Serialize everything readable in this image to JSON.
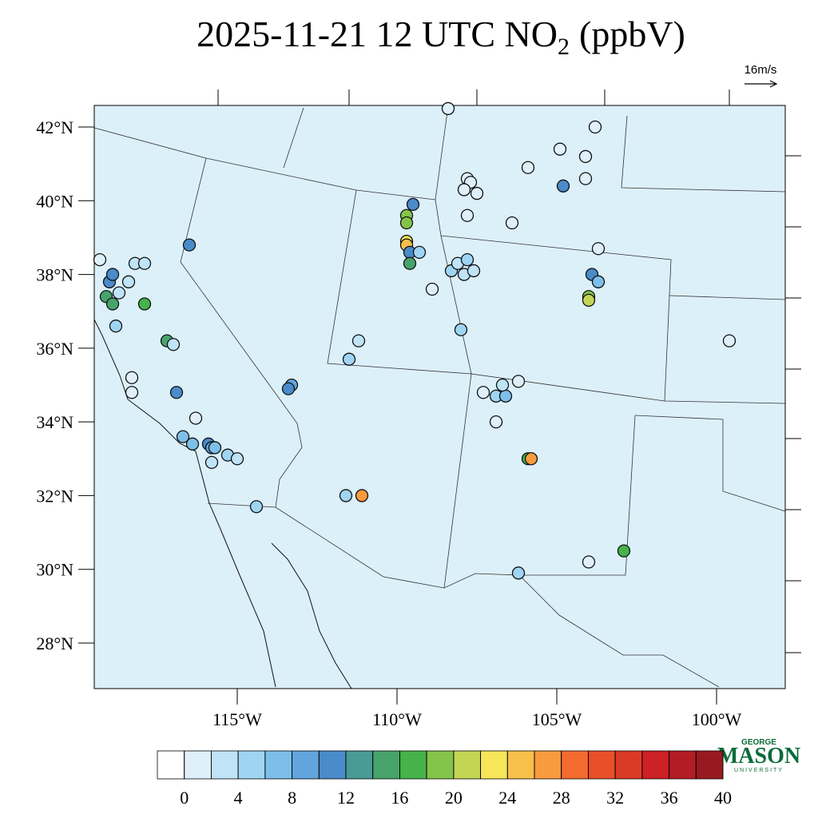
{
  "map": {
    "title": {
      "main": "2025-11-21 12 UTC NO",
      "subscript": "2",
      "unit": "(ppbV)"
    },
    "wind_reference": "16m/s",
    "lat_ticks": [
      {
        "value": 42,
        "label": "42°N"
      },
      {
        "value": 40,
        "label": "40°N"
      },
      {
        "value": 38,
        "label": "38°N"
      },
      {
        "value": 36,
        "label": "36°N"
      },
      {
        "value": 34,
        "label": "34°N"
      },
      {
        "value": 32,
        "label": "32°N"
      },
      {
        "value": 30,
        "label": "30°N"
      },
      {
        "value": 28,
        "label": "28°N"
      }
    ],
    "lon_ticks": [
      {
        "value": -115,
        "label": "115°W"
      },
      {
        "value": -110,
        "label": "110°W"
      },
      {
        "value": -105,
        "label": "105°W"
      },
      {
        "value": -100,
        "label": "100°W"
      }
    ],
    "colorbar": {
      "levels": [
        0,
        2,
        4,
        6,
        8,
        10,
        12,
        14,
        16,
        18,
        20,
        22,
        24,
        26,
        28,
        30,
        32,
        34,
        36,
        38,
        40
      ],
      "ticks": [
        0,
        4,
        8,
        12,
        16,
        20,
        24,
        28,
        32,
        36,
        40
      ],
      "colors": [
        "#ffffff",
        "#dff0fa",
        "#bfe4f8",
        "#9fd5f3",
        "#7dbfe9",
        "#62a5dd",
        "#4a8bca",
        "#4a9a96",
        "#46a46b",
        "#45b24a",
        "#85c44b",
        "#c3d554",
        "#f7e659",
        "#f8c04a",
        "#f89a3e",
        "#f36b2e",
        "#e8502a",
        "#db3a26",
        "#cd2027",
        "#b31c25",
        "#981a20"
      ]
    },
    "stations": [
      {
        "lon": -119.3,
        "lat": 38.4,
        "value": 1
      },
      {
        "lon": -119.0,
        "lat": 37.8,
        "value": 11
      },
      {
        "lon": -118.9,
        "lat": 38.0,
        "value": 10
      },
      {
        "lon": -118.7,
        "lat": 37.5,
        "value": 2
      },
      {
        "lon": -119.1,
        "lat": 37.4,
        "value": 15
      },
      {
        "lon": -118.9,
        "lat": 37.2,
        "value": 15
      },
      {
        "lon": -118.4,
        "lat": 37.8,
        "value": 2
      },
      {
        "lon": -118.2,
        "lat": 38.3,
        "value": 3
      },
      {
        "lon": -117.9,
        "lat": 38.3,
        "value": 2
      },
      {
        "lon": -118.8,
        "lat": 36.6,
        "value": 4
      },
      {
        "lon": -117.9,
        "lat": 37.2,
        "value": 16
      },
      {
        "lon": -117.2,
        "lat": 36.2,
        "value": 15
      },
      {
        "lon": -117.0,
        "lat": 36.1,
        "value": 3
      },
      {
        "lon": -116.9,
        "lat": 34.8,
        "value": 10
      },
      {
        "lon": -118.3,
        "lat": 35.2,
        "value": 1
      },
      {
        "lon": -118.3,
        "lat": 34.8,
        "value": 1
      },
      {
        "lon": -116.5,
        "lat": 38.8,
        "value": 11
      },
      {
        "lon": -116.3,
        "lat": 34.1,
        "value": 1
      },
      {
        "lon": -116.7,
        "lat": 33.6,
        "value": 6
      },
      {
        "lon": -116.4,
        "lat": 33.4,
        "value": 7
      },
      {
        "lon": -115.9,
        "lat": 33.4,
        "value": 10
      },
      {
        "lon": -115.8,
        "lat": 33.3,
        "value": 9
      },
      {
        "lon": -115.7,
        "lat": 33.3,
        "value": 6
      },
      {
        "lon": -115.8,
        "lat": 32.9,
        "value": 2
      },
      {
        "lon": -115.3,
        "lat": 33.1,
        "value": 4
      },
      {
        "lon": -115.0,
        "lat": 33.0,
        "value": 3
      },
      {
        "lon": -114.4,
        "lat": 31.7,
        "value": 5
      },
      {
        "lon": -113.3,
        "lat": 35.0,
        "value": 9
      },
      {
        "lon": -113.4,
        "lat": 34.9,
        "value": 11
      },
      {
        "lon": -111.5,
        "lat": 35.7,
        "value": 5
      },
      {
        "lon": -111.2,
        "lat": 36.2,
        "value": 3
      },
      {
        "lon": -111.6,
        "lat": 32.0,
        "value": 5
      },
      {
        "lon": -111.1,
        "lat": 32.0,
        "value": 27
      },
      {
        "lon": -109.5,
        "lat": 39.9,
        "value": 11
      },
      {
        "lon": -109.7,
        "lat": 39.6,
        "value": 18
      },
      {
        "lon": -109.7,
        "lat": 39.4,
        "value": 19
      },
      {
        "lon": -109.7,
        "lat": 38.9,
        "value": 23
      },
      {
        "lon": -109.7,
        "lat": 38.8,
        "value": 24
      },
      {
        "lon": -109.6,
        "lat": 38.6,
        "value": 11
      },
      {
        "lon": -109.6,
        "lat": 38.3,
        "value": 15
      },
      {
        "lon": -109.3,
        "lat": 38.6,
        "value": 4
      },
      {
        "lon": -108.9,
        "lat": 37.6,
        "value": 1
      },
      {
        "lon": -108.3,
        "lat": 38.1,
        "value": 4
      },
      {
        "lon": -108.1,
        "lat": 38.3,
        "value": 3
      },
      {
        "lon": -107.8,
        "lat": 38.4,
        "value": 4
      },
      {
        "lon": -107.9,
        "lat": 38.0,
        "value": 3
      },
      {
        "lon": -107.6,
        "lat": 38.1,
        "value": 2
      },
      {
        "lon": -108.0,
        "lat": 36.5,
        "value": 4
      },
      {
        "lon": -108.4,
        "lat": 42.5,
        "value": 1
      },
      {
        "lon": -107.8,
        "lat": 40.6,
        "value": 1
      },
      {
        "lon": -107.7,
        "lat": 40.5,
        "value": 1
      },
      {
        "lon": -107.9,
        "lat": 40.3,
        "value": 1
      },
      {
        "lon": -107.5,
        "lat": 40.2,
        "value": 1
      },
      {
        "lon": -107.8,
        "lat": 39.6,
        "value": 1
      },
      {
        "lon": -106.4,
        "lat": 39.4,
        "value": 1
      },
      {
        "lon": -105.9,
        "lat": 40.9,
        "value": 1
      },
      {
        "lon": -104.9,
        "lat": 41.4,
        "value": 1
      },
      {
        "lon": -103.8,
        "lat": 42.0,
        "value": 1
      },
      {
        "lon": -104.1,
        "lat": 41.2,
        "value": 1
      },
      {
        "lon": -104.8,
        "lat": 40.4,
        "value": 11
      },
      {
        "lon": -104.1,
        "lat": 40.6,
        "value": 1
      },
      {
        "lon": -103.7,
        "lat": 38.7,
        "value": 1
      },
      {
        "lon": -103.9,
        "lat": 38.0,
        "value": 10
      },
      {
        "lon": -103.7,
        "lat": 37.8,
        "value": 7
      },
      {
        "lon": -104.0,
        "lat": 37.4,
        "value": 19
      },
      {
        "lon": -104.0,
        "lat": 37.3,
        "value": 20
      },
      {
        "lon": -107.3,
        "lat": 34.8,
        "value": 1
      },
      {
        "lon": -106.9,
        "lat": 34.7,
        "value": 5
      },
      {
        "lon": -106.6,
        "lat": 34.7,
        "value": 6
      },
      {
        "lon": -106.7,
        "lat": 35.0,
        "value": 2
      },
      {
        "lon": -106.2,
        "lat": 35.1,
        "value": 1
      },
      {
        "lon": -106.9,
        "lat": 34.0,
        "value": 1
      },
      {
        "lon": -105.9,
        "lat": 33.0,
        "value": 17
      },
      {
        "lon": -105.8,
        "lat": 33.0,
        "value": 27
      },
      {
        "lon": -99.6,
        "lat": 36.2,
        "value": 1
      },
      {
        "lon": -104.0,
        "lat": 30.2,
        "value": 1
      },
      {
        "lon": -102.9,
        "lat": 30.5,
        "value": 17
      },
      {
        "lon": -106.2,
        "lat": 29.9,
        "value": 4
      }
    ],
    "logo": {
      "top": "GEORGE",
      "name": "MASON",
      "bottom": "UNIVERSITY"
    }
  }
}
